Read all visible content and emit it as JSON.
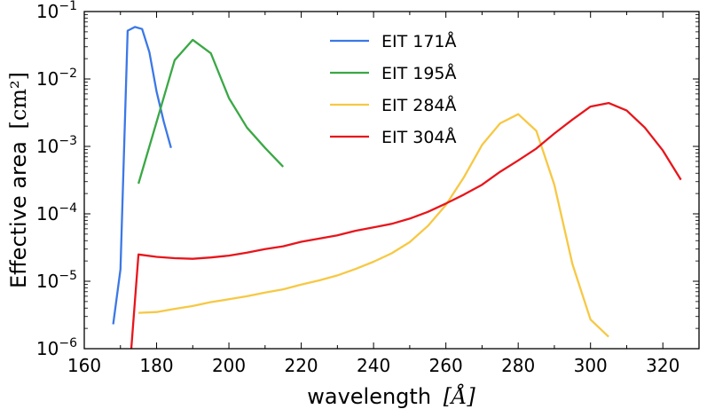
{
  "chart_data": {
    "type": "line",
    "title": "",
    "xlabel": "wavelength",
    "xlabel_unit": "[Å]",
    "ylabel": "Effective area",
    "ylabel_unit": "[cm²]",
    "x_scale": "linear",
    "y_scale": "log",
    "xlim": [
      160,
      330
    ],
    "ylim": [
      1e-06,
      0.1
    ],
    "x_ticks": [
      {
        "value": 160,
        "label": "160"
      },
      {
        "value": 180,
        "label": "180"
      },
      {
        "value": 200,
        "label": "200"
      },
      {
        "value": 220,
        "label": "220"
      },
      {
        "value": 240,
        "label": "240"
      },
      {
        "value": 260,
        "label": "260"
      },
      {
        "value": 280,
        "label": "280"
      },
      {
        "value": 300,
        "label": "300"
      },
      {
        "value": 320,
        "label": "320"
      }
    ],
    "y_ticks": [
      {
        "value": 1e-06,
        "base": "10",
        "exp": "−6"
      },
      {
        "value": 1e-05,
        "base": "10",
        "exp": "−5"
      },
      {
        "value": 0.0001,
        "base": "10",
        "exp": "−4"
      },
      {
        "value": 0.001,
        "base": "10",
        "exp": "−3"
      },
      {
        "value": 0.01,
        "base": "10",
        "exp": "−2"
      },
      {
        "value": 0.1,
        "base": "10",
        "exp": "−1"
      }
    ],
    "legend_placement": "top-center",
    "grid": false,
    "series": [
      {
        "name": "EIT 171Å",
        "color": "#3b78e7",
        "x": [
          168,
          170,
          172,
          174,
          176,
          178,
          180,
          182,
          184
        ],
        "y": [
          2.3e-06,
          1.5e-05,
          0.052,
          0.059,
          0.055,
          0.025,
          0.0065,
          0.0023,
          0.00095
        ]
      },
      {
        "name": "EIT 195Å",
        "color": "#3aa845",
        "x": [
          175,
          180,
          185,
          190,
          195,
          200,
          205,
          210,
          215
        ],
        "y": [
          0.00028,
          0.0023,
          0.019,
          0.038,
          0.024,
          0.0052,
          0.0019,
          0.00095,
          0.0005
        ]
      },
      {
        "name": "EIT 284Å",
        "color": "#f7c843",
        "x": [
          175,
          180,
          185,
          190,
          195,
          200,
          205,
          210,
          215,
          220,
          225,
          230,
          235,
          240,
          245,
          250,
          255,
          260,
          265,
          270,
          275,
          280,
          285,
          290,
          295,
          300,
          305
        ],
        "y": [
          3.4e-06,
          3.5e-06,
          3.9e-06,
          4.3e-06,
          4.9e-06,
          5.4e-06,
          6e-06,
          6.8e-06,
          7.6e-06,
          8.9e-06,
          1.03e-05,
          1.22e-05,
          1.52e-05,
          1.95e-05,
          2.6e-05,
          3.8e-05,
          6.6e-05,
          0.000135,
          0.00035,
          0.00105,
          0.0022,
          0.003,
          0.0017,
          0.00027,
          1.8e-05,
          2.7e-06,
          1.5e-06
        ]
      },
      {
        "name": "EIT 304Å",
        "color": "#e8151b",
        "x": [
          173,
          175,
          180,
          185,
          190,
          195,
          200,
          205,
          210,
          215,
          220,
          225,
          230,
          235,
          240,
          245,
          250,
          255,
          260,
          265,
          270,
          275,
          280,
          285,
          290,
          295,
          300,
          305,
          310,
          315,
          320,
          325
        ],
        "y": [
          1e-06,
          2.5e-05,
          2.3e-05,
          2.2e-05,
          2.15e-05,
          2.25e-05,
          2.4e-05,
          2.65e-05,
          3e-05,
          3.3e-05,
          3.85e-05,
          4.3e-05,
          4.8e-05,
          5.6e-05,
          6.3e-05,
          7.1e-05,
          8.5e-05,
          0.000107,
          0.000142,
          0.000193,
          0.00027,
          0.00042,
          0.00062,
          0.00093,
          0.00155,
          0.0025,
          0.0039,
          0.0044,
          0.0034,
          0.0019,
          0.00087,
          0.00032
        ]
      }
    ]
  }
}
